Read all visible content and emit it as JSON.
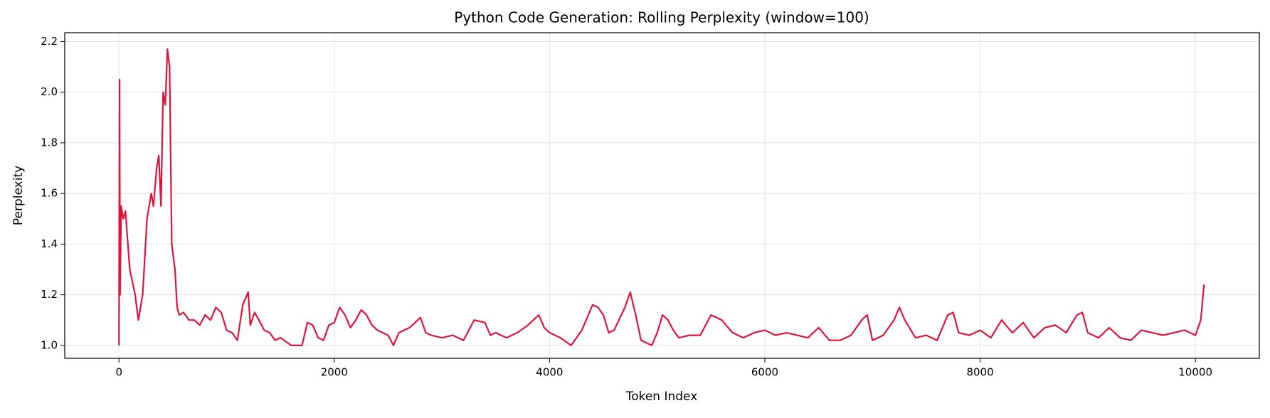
{
  "chart_data": {
    "type": "line",
    "title": "Python Code Generation: Rolling Perplexity (window=100)",
    "xlabel": "Token Index",
    "ylabel": "Perplexity",
    "x": [
      0,
      5,
      10,
      20,
      40,
      60,
      100,
      150,
      180,
      220,
      260,
      300,
      320,
      350,
      370,
      390,
      410,
      430,
      450,
      470,
      490,
      520,
      540,
      560,
      600,
      650,
      700,
      750,
      800,
      850,
      900,
      950,
      1000,
      1050,
      1100,
      1150,
      1200,
      1220,
      1260,
      1300,
      1350,
      1400,
      1450,
      1500,
      1600,
      1700,
      1750,
      1800,
      1850,
      1900,
      1950,
      2000,
      2050,
      2100,
      2150,
      2200,
      2250,
      2300,
      2350,
      2400,
      2500,
      2550,
      2600,
      2700,
      2800,
      2850,
      2900,
      3000,
      3100,
      3200,
      3300,
      3400,
      3450,
      3500,
      3600,
      3700,
      3800,
      3900,
      3950,
      4000,
      4100,
      4200,
      4300,
      4400,
      4450,
      4500,
      4550,
      4600,
      4700,
      4750,
      4800,
      4850,
      4950,
      5000,
      5050,
      5100,
      5150,
      5200,
      5300,
      5400,
      5500,
      5600,
      5700,
      5800,
      5900,
      6000,
      6100,
      6200,
      6300,
      6400,
      6500,
      6600,
      6700,
      6800,
      6900,
      6950,
      7000,
      7100,
      7200,
      7250,
      7300,
      7400,
      7500,
      7600,
      7700,
      7750,
      7800,
      7900,
      8000,
      8100,
      8200,
      8300,
      8400,
      8500,
      8600,
      8700,
      8800,
      8900,
      8950,
      9000,
      9100,
      9200,
      9300,
      9400,
      9500,
      9600,
      9700,
      9800,
      9900,
      10000,
      10050,
      10080
    ],
    "series": [
      {
        "name": "Rolling Perplexity",
        "color": "#dc143c",
        "values": [
          1.0,
          2.05,
          1.2,
          1.55,
          1.5,
          1.53,
          1.3,
          1.2,
          1.1,
          1.2,
          1.5,
          1.6,
          1.55,
          1.7,
          1.75,
          1.55,
          2.0,
          1.95,
          2.17,
          2.1,
          1.4,
          1.3,
          1.15,
          1.12,
          1.13,
          1.1,
          1.1,
          1.08,
          1.12,
          1.1,
          1.15,
          1.13,
          1.06,
          1.05,
          1.02,
          1.16,
          1.21,
          1.08,
          1.13,
          1.1,
          1.06,
          1.05,
          1.02,
          1.03,
          1.0,
          1.0,
          1.09,
          1.08,
          1.03,
          1.02,
          1.08,
          1.09,
          1.15,
          1.12,
          1.07,
          1.1,
          1.14,
          1.12,
          1.08,
          1.06,
          1.04,
          1.0,
          1.05,
          1.07,
          1.11,
          1.05,
          1.04,
          1.03,
          1.04,
          1.02,
          1.1,
          1.09,
          1.04,
          1.05,
          1.03,
          1.05,
          1.08,
          1.12,
          1.07,
          1.05,
          1.03,
          1.0,
          1.06,
          1.16,
          1.15,
          1.12,
          1.05,
          1.06,
          1.15,
          1.21,
          1.12,
          1.02,
          1.0,
          1.05,
          1.12,
          1.1,
          1.06,
          1.03,
          1.04,
          1.04,
          1.12,
          1.1,
          1.05,
          1.03,
          1.05,
          1.06,
          1.04,
          1.05,
          1.04,
          1.03,
          1.07,
          1.02,
          1.02,
          1.04,
          1.1,
          1.12,
          1.02,
          1.04,
          1.1,
          1.15,
          1.1,
          1.03,
          1.04,
          1.02,
          1.12,
          1.13,
          1.05,
          1.04,
          1.06,
          1.03,
          1.1,
          1.05,
          1.09,
          1.03,
          1.07,
          1.08,
          1.05,
          1.12,
          1.13,
          1.05,
          1.03,
          1.07,
          1.03,
          1.02,
          1.06,
          1.05,
          1.04,
          1.05,
          1.06,
          1.04,
          1.1,
          1.24
        ]
      }
    ],
    "xlim": [
      -504,
      10594
    ],
    "ylim": [
      0.949,
      2.235
    ],
    "xticks": [
      0,
      2000,
      4000,
      6000,
      8000,
      10000
    ],
    "yticks": [
      {
        "value": 1,
        "label": "1.0"
      },
      1.2,
      1.4,
      1.6,
      1.8,
      {
        "value": 2,
        "label": "2.0"
      },
      2.2
    ],
    "grid": true
  }
}
